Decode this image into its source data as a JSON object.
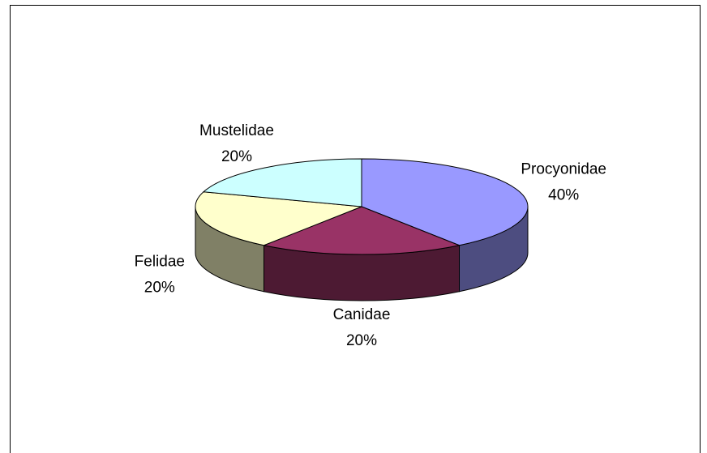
{
  "chart_data": {
    "type": "pie",
    "categories": [
      "Procyonidae",
      "Canidae",
      "Felidae",
      "Mustelidae"
    ],
    "values": [
      40,
      20,
      20,
      20
    ],
    "value_labels": [
      "40%",
      "20%",
      "20%",
      "20%"
    ],
    "colors": [
      "#9999ff",
      "#993366",
      "#ffffcc",
      "#ccffff"
    ]
  }
}
